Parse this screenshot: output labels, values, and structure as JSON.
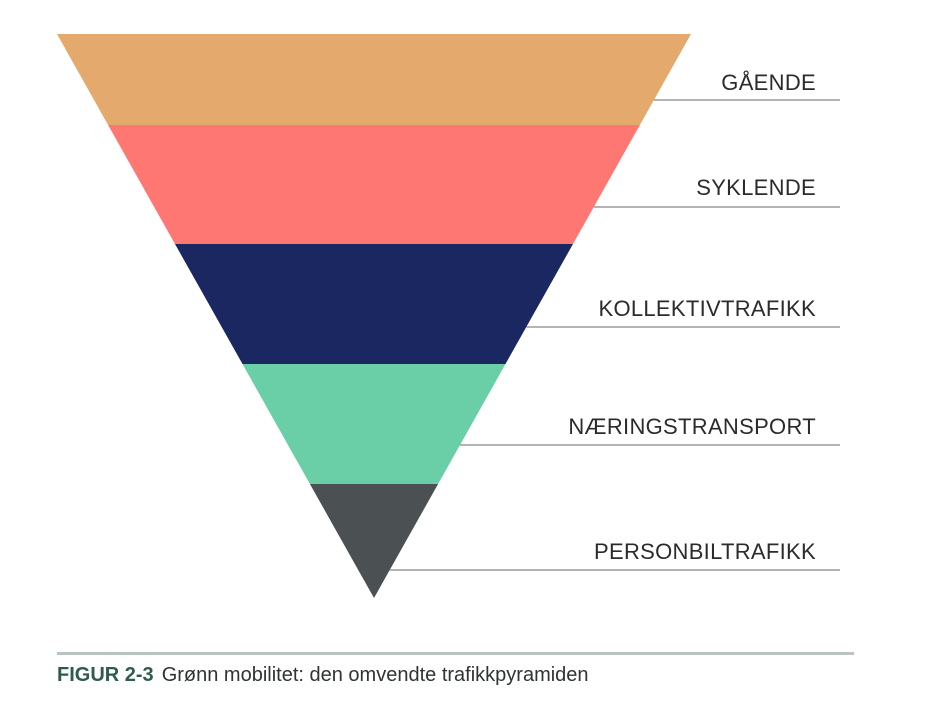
{
  "figure": {
    "levels": [
      {
        "label": "GÅENDE",
        "color": "#E4A96C"
      },
      {
        "label": "SYKLENDE",
        "color": "#FF7772"
      },
      {
        "label": "KOLLEKTIVTRAFIKK",
        "color": "#1B2761"
      },
      {
        "label": "NÆRINGSTRANSPORT",
        "color": "#6ACFA6"
      },
      {
        "label": "PERSONBILTRAFIKK",
        "color": "#4B5153"
      }
    ]
  },
  "caption": {
    "prefix": "FIGUR 2-3",
    "text": "Grønn mobilitet: den omvendte trafikkpyramiden"
  }
}
